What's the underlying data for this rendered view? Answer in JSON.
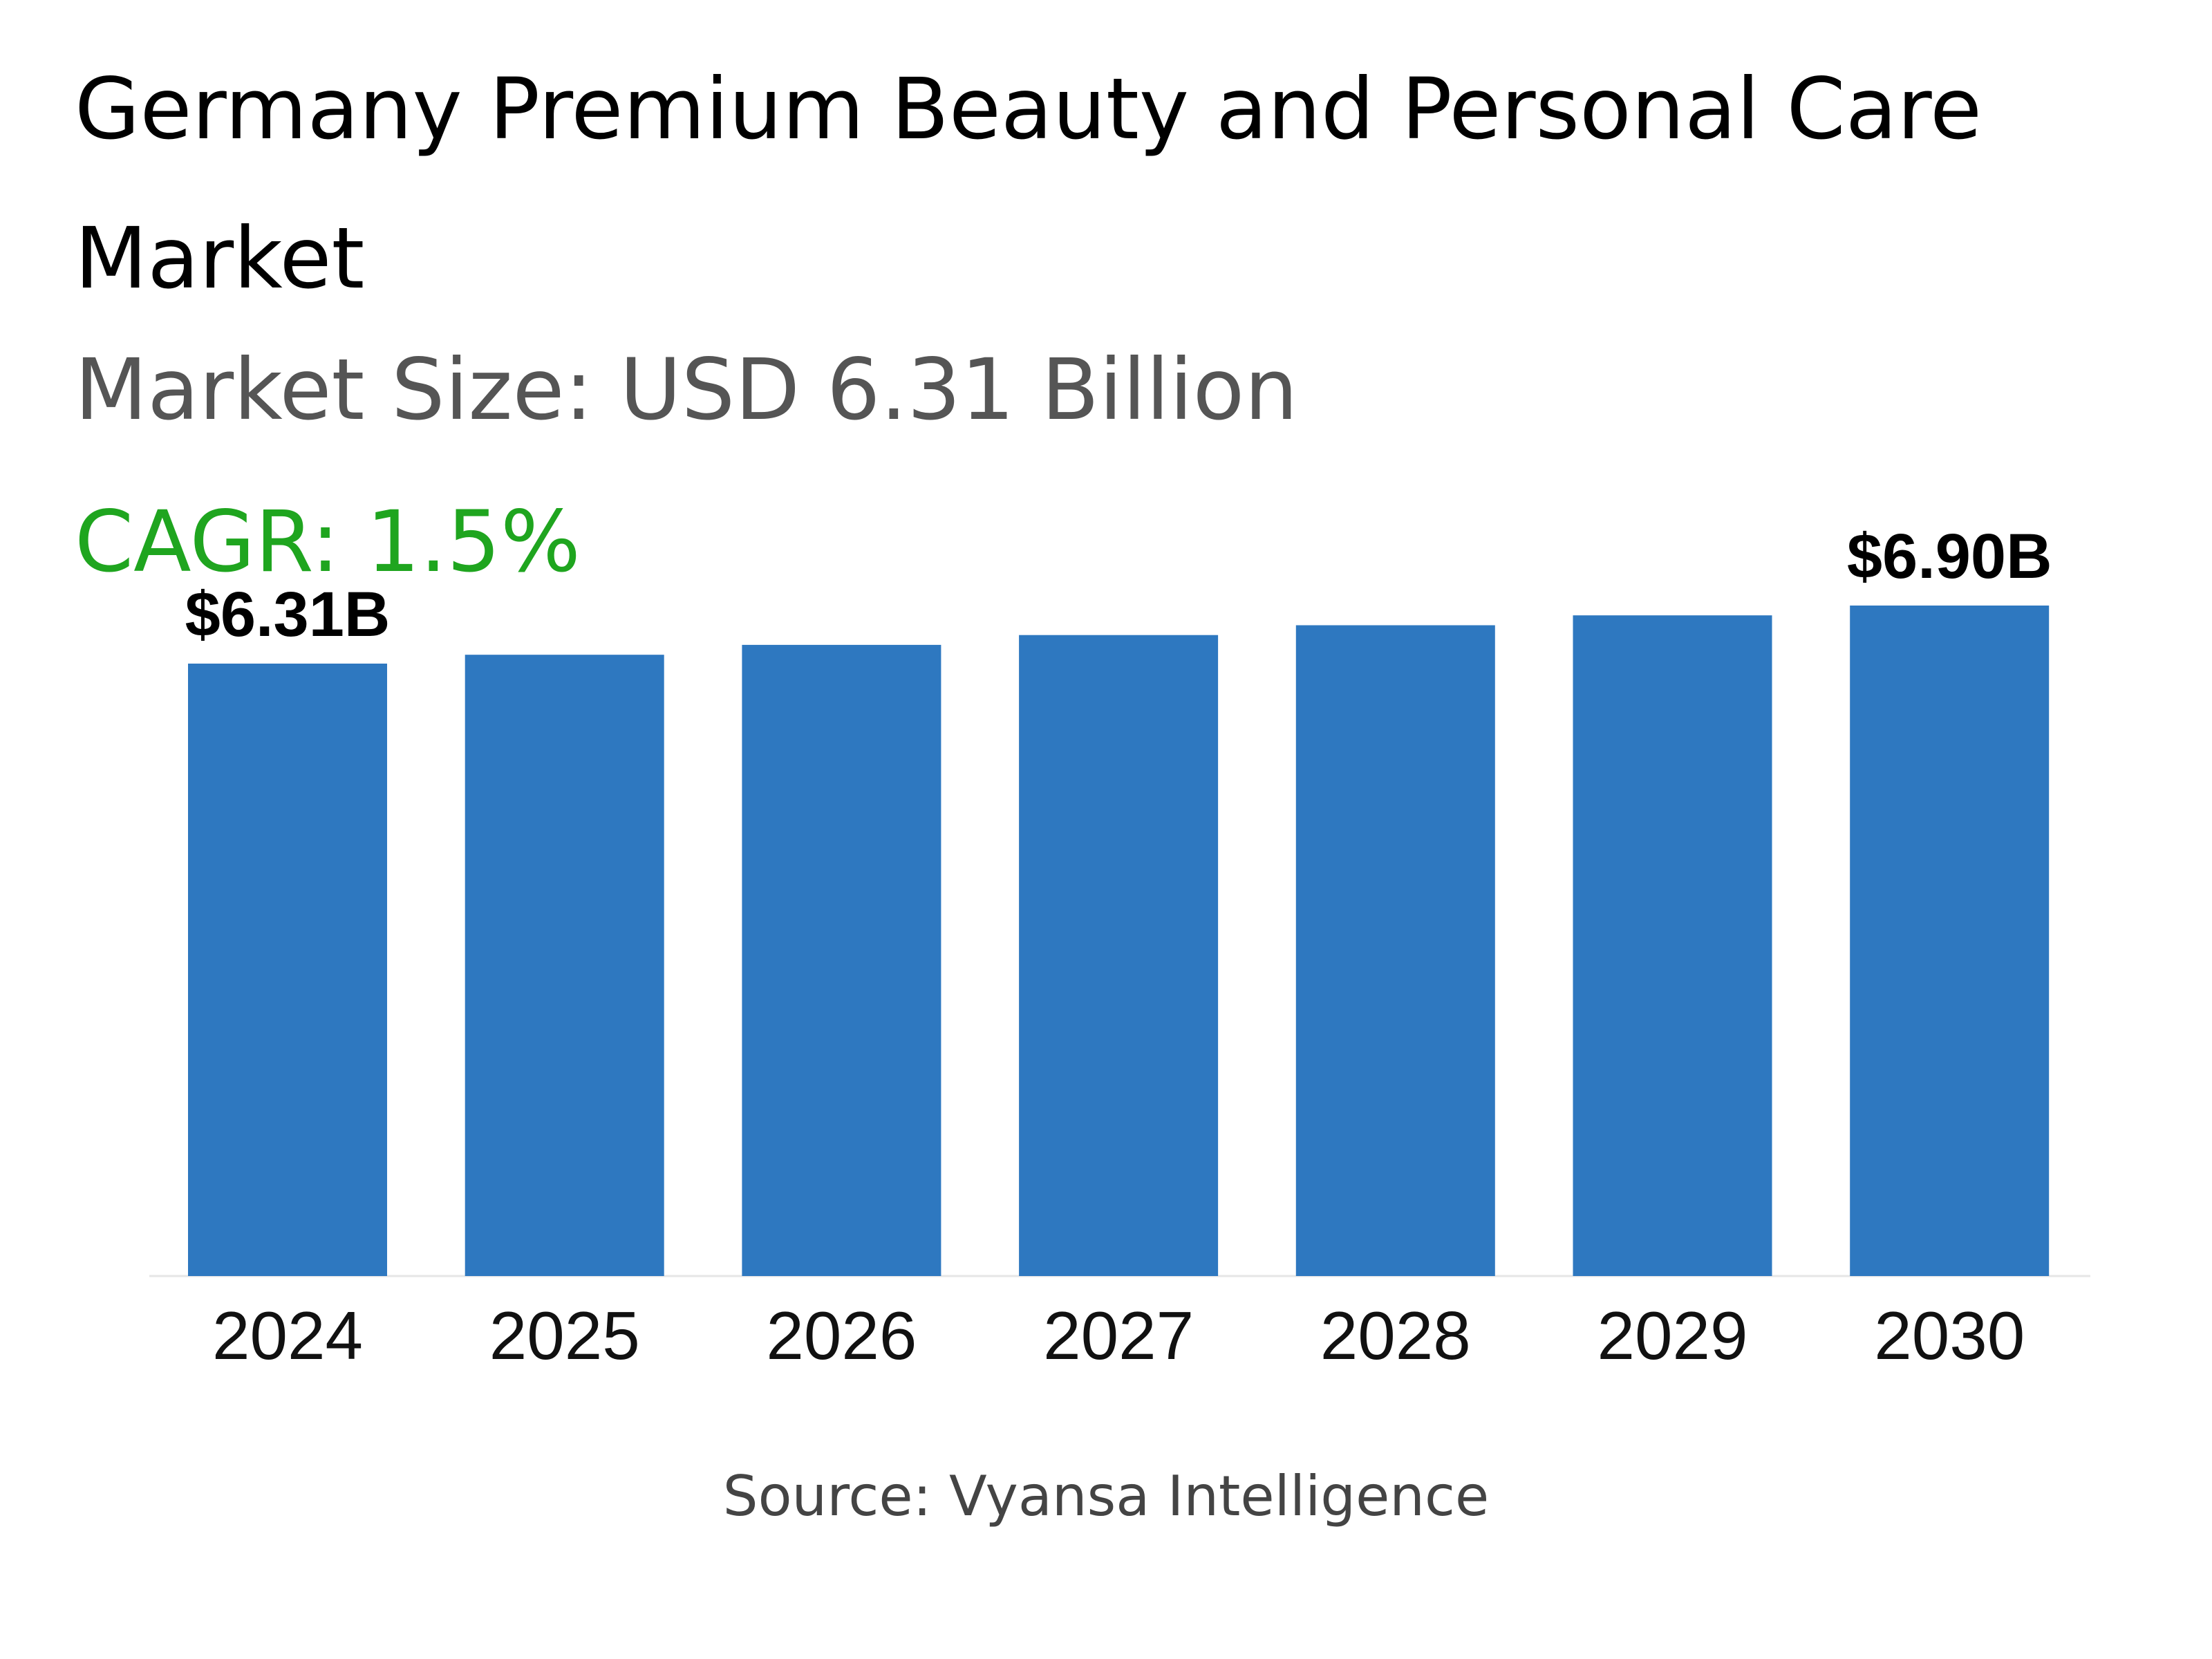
{
  "header": {
    "title": "Germany Premium Beauty and Personal Care Market",
    "market_size": "Market Size: USD 6.31 Billion",
    "cagr": "CAGR: 1.5%"
  },
  "footer": {
    "source": "Source: Vyansa Intelligence"
  },
  "colors": {
    "bar": "#2e78c0",
    "cagr": "#1fa51f",
    "axis": "#e6e6e6"
  },
  "chart_data": {
    "type": "bar",
    "categories": [
      "2024",
      "2025",
      "2026",
      "2027",
      "2028",
      "2029",
      "2030"
    ],
    "values": [
      6.31,
      6.4,
      6.5,
      6.6,
      6.7,
      6.8,
      6.9
    ],
    "data_labels": [
      "$6.31B",
      "",
      "",
      "",
      "",
      "",
      "$6.90B"
    ],
    "title": "Germany Premium Beauty and Personal Care Market",
    "xlabel": "",
    "ylabel": "",
    "ylim": [
      0,
      7.0
    ],
    "grid": false,
    "legend": "none"
  }
}
